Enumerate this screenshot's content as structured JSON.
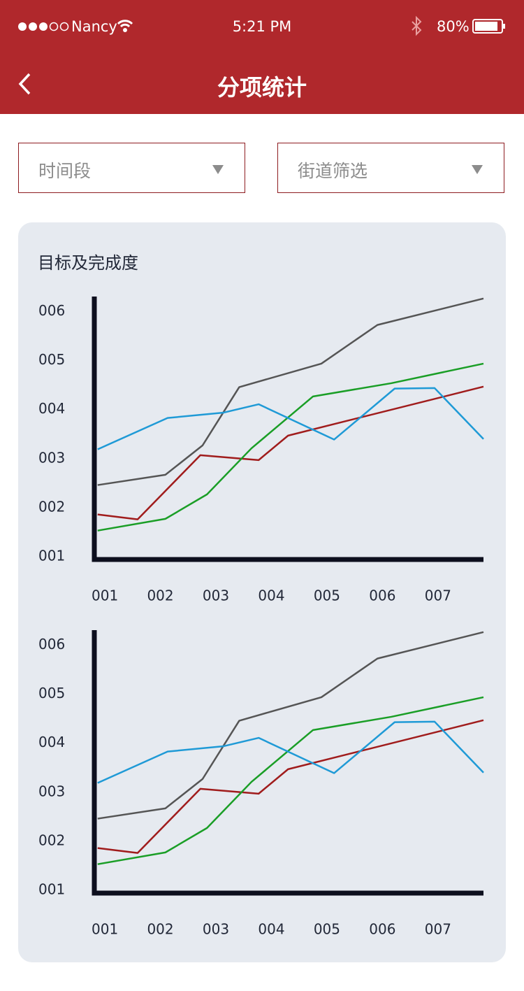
{
  "status_bar": {
    "carrier": "Nancy",
    "time": "5:21 PM",
    "battery": "80%"
  },
  "header": {
    "title": "分项统计"
  },
  "filters": [
    "时间段",
    "街道筛选"
  ],
  "chart_data": [
    {
      "type": "line",
      "title": "目标及完成度",
      "xlim": [
        0.81,
        7.82
      ],
      "ylim": [
        0.94,
        6.31
      ],
      "xticks": [
        {
          "value": 1,
          "label": "001"
        },
        {
          "value": 2,
          "label": "002"
        },
        {
          "value": 3,
          "label": "003"
        },
        {
          "value": 4,
          "label": "004"
        },
        {
          "value": 5,
          "label": "005"
        },
        {
          "value": 6,
          "label": "006"
        },
        {
          "value": 7,
          "label": "007"
        }
      ],
      "yticks": [
        {
          "value": 1,
          "label": "001"
        },
        {
          "value": 2,
          "label": "002"
        },
        {
          "value": 3,
          "label": "003"
        },
        {
          "value": 4,
          "label": "004"
        },
        {
          "value": 5,
          "label": "005"
        },
        {
          "value": 6,
          "label": "006"
        }
      ],
      "series": [
        {
          "color": "#555555",
          "x": [
            0.87,
            2.09,
            2.76,
            3.42,
            4.9,
            5.91,
            7.82
          ],
          "values": [
            2.46,
            2.67,
            3.27,
            4.46,
            4.94,
            5.73,
            6.27
          ]
        },
        {
          "color": "#a01c1c",
          "x": [
            0.87,
            1.59,
            2.72,
            3.77,
            4.3,
            7.82
          ],
          "values": [
            1.86,
            1.76,
            3.07,
            2.97,
            3.47,
            4.47
          ]
        },
        {
          "color": "#1a9e26",
          "x": [
            0.87,
            2.09,
            2.84,
            3.64,
            4.75,
            6.16,
            7.82
          ],
          "values": [
            1.53,
            1.77,
            2.27,
            3.21,
            4.27,
            4.54,
            4.94
          ]
        },
        {
          "color": "#1f9ad6",
          "x": [
            0.87,
            2.13,
            3.14,
            3.77,
            5.13,
            6.22,
            6.94,
            7.82
          ],
          "values": [
            3.19,
            3.83,
            3.94,
            4.11,
            3.39,
            4.43,
            4.44,
            3.4
          ]
        }
      ]
    },
    {
      "type": "line",
      "xlim": [
        0.81,
        7.82
      ],
      "ylim": [
        0.94,
        6.31
      ],
      "xticks": [
        {
          "value": 1,
          "label": "001"
        },
        {
          "value": 2,
          "label": "002"
        },
        {
          "value": 3,
          "label": "003"
        },
        {
          "value": 4,
          "label": "004"
        },
        {
          "value": 5,
          "label": "005"
        },
        {
          "value": 6,
          "label": "006"
        },
        {
          "value": 7,
          "label": "007"
        }
      ],
      "yticks": [
        {
          "value": 1,
          "label": "001"
        },
        {
          "value": 2,
          "label": "002"
        },
        {
          "value": 3,
          "label": "003"
        },
        {
          "value": 4,
          "label": "004"
        },
        {
          "value": 5,
          "label": "005"
        },
        {
          "value": 6,
          "label": "006"
        }
      ],
      "series": [
        {
          "color": "#555555",
          "x": [
            0.87,
            2.09,
            2.76,
            3.42,
            4.9,
            5.91,
            7.82
          ],
          "values": [
            2.46,
            2.67,
            3.27,
            4.46,
            4.94,
            5.73,
            6.27
          ]
        },
        {
          "color": "#a01c1c",
          "x": [
            0.87,
            1.59,
            2.72,
            3.77,
            4.3,
            7.82
          ],
          "values": [
            1.86,
            1.76,
            3.07,
            2.97,
            3.47,
            4.47
          ]
        },
        {
          "color": "#1a9e26",
          "x": [
            0.87,
            2.09,
            2.84,
            3.64,
            4.75,
            6.16,
            7.82
          ],
          "values": [
            1.53,
            1.77,
            2.27,
            3.21,
            4.27,
            4.54,
            4.94
          ]
        },
        {
          "color": "#1f9ad6",
          "x": [
            0.87,
            2.13,
            3.14,
            3.77,
            5.13,
            6.22,
            6.94,
            7.82
          ],
          "values": [
            3.19,
            3.83,
            3.94,
            4.11,
            3.39,
            4.43,
            4.44,
            3.4
          ]
        }
      ]
    }
  ]
}
